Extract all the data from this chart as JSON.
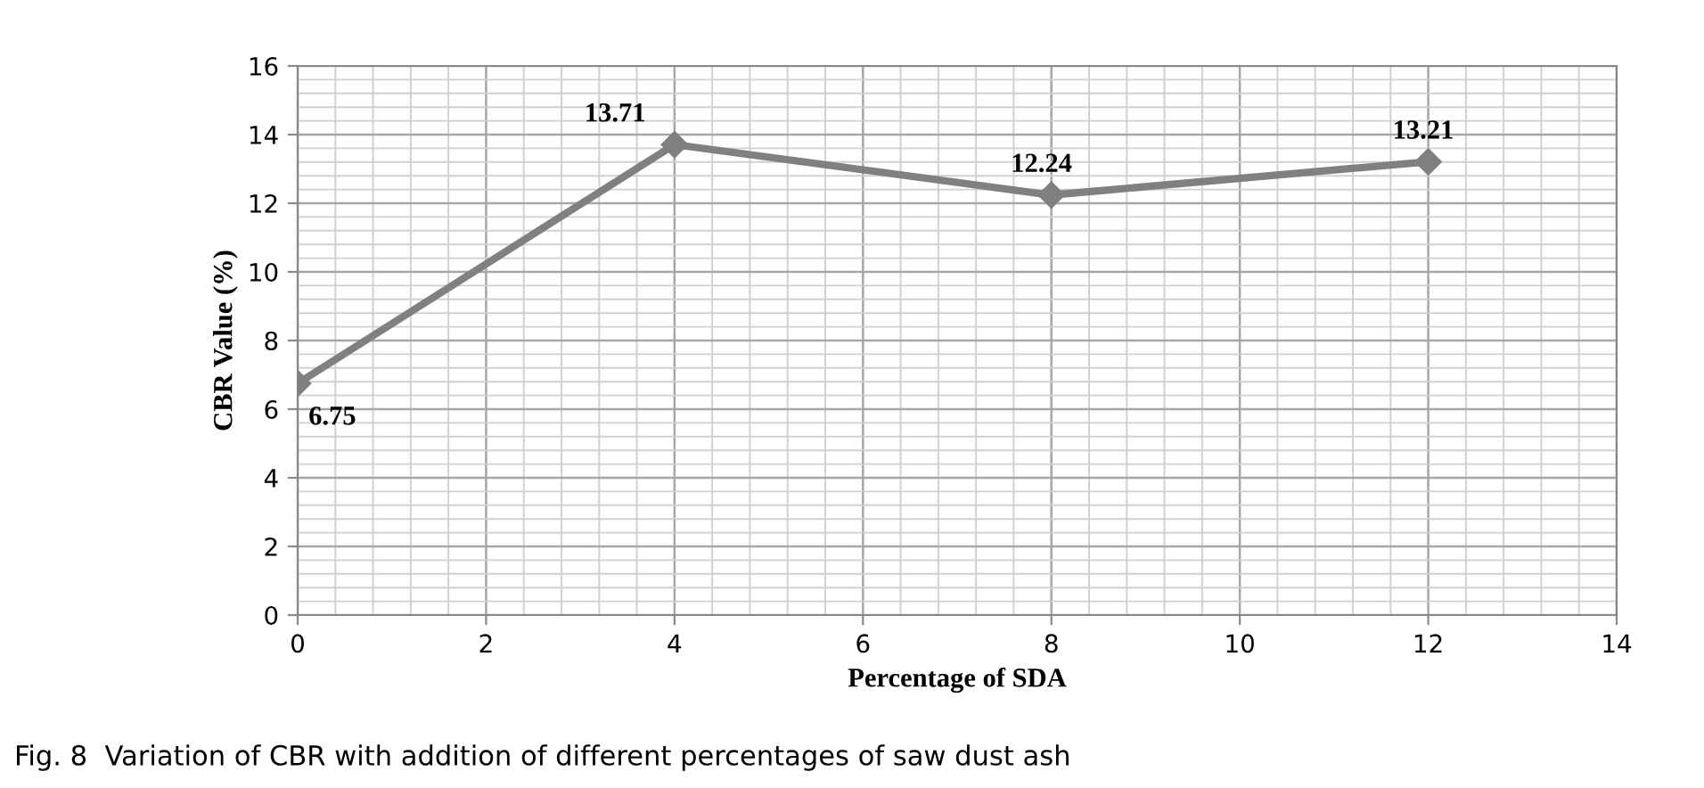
{
  "chart_data": {
    "type": "line",
    "xlabel": "Percentage of SDA",
    "ylabel": "CBR Value (%)",
    "x": [
      0,
      4,
      8,
      12
    ],
    "series": [
      {
        "color": "#808080",
        "values": [
          6.75,
          13.71,
          12.24,
          13.21
        ]
      }
    ],
    "xlim": [
      0,
      14
    ],
    "xticks": [
      0,
      2,
      4,
      6,
      8,
      10,
      12,
      14
    ],
    "ylim": [
      0,
      16
    ],
    "yticks": [
      0,
      2,
      4,
      6,
      8,
      10,
      12,
      14,
      16
    ],
    "grid": true,
    "marker": "diamond",
    "line_style": "solid",
    "data_labels": true,
    "annotations": [
      "Fig. 8  Variation of CBR with addition of different percentages of saw dust ash"
    ]
  }
}
